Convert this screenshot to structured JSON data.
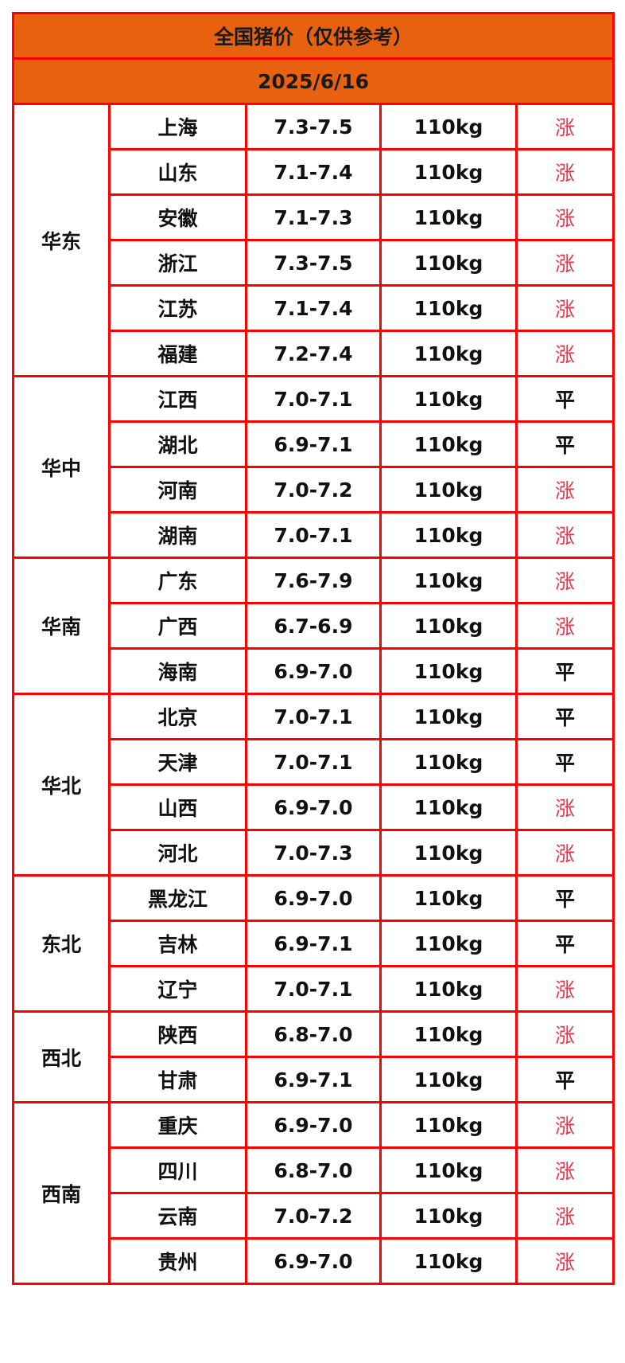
{
  "title": "全国猪价（仅供参考）",
  "date": "2025/6/16",
  "colors": {
    "header_bg": "#e8610f",
    "border": "#ff0000",
    "up": "#f03048",
    "flat": "#111111"
  },
  "regions": [
    {
      "name": "华东",
      "rows": [
        {
          "province": "上海",
          "price": "7.3-7.5",
          "weight": "110kg",
          "trend": "涨"
        },
        {
          "province": "山东",
          "price": "7.1-7.4",
          "weight": "110kg",
          "trend": "涨"
        },
        {
          "province": "安徽",
          "price": "7.1-7.3",
          "weight": "110kg",
          "trend": "涨"
        },
        {
          "province": "浙江",
          "price": "7.3-7.5",
          "weight": "110kg",
          "trend": "涨"
        },
        {
          "province": "江苏",
          "price": "7.1-7.4",
          "weight": "110kg",
          "trend": "涨"
        },
        {
          "province": "福建",
          "price": "7.2-7.4",
          "weight": "110kg",
          "trend": "涨"
        }
      ]
    },
    {
      "name": "华中",
      "rows": [
        {
          "province": "江西",
          "price": "7.0-7.1",
          "weight": "110kg",
          "trend": "平"
        },
        {
          "province": "湖北",
          "price": "6.9-7.1",
          "weight": "110kg",
          "trend": "平"
        },
        {
          "province": "河南",
          "price": "7.0-7.2",
          "weight": "110kg",
          "trend": "涨"
        },
        {
          "province": "湖南",
          "price": "7.0-7.1",
          "weight": "110kg",
          "trend": "涨"
        }
      ]
    },
    {
      "name": "华南",
      "rows": [
        {
          "province": "广东",
          "price": "7.6-7.9",
          "weight": "110kg",
          "trend": "涨"
        },
        {
          "province": "广西",
          "price": "6.7-6.9",
          "weight": "110kg",
          "trend": "涨"
        },
        {
          "province": "海南",
          "price": "6.9-7.0",
          "weight": "110kg",
          "trend": "平"
        }
      ]
    },
    {
      "name": "华北",
      "rows": [
        {
          "province": "北京",
          "price": "7.0-7.1",
          "weight": "110kg",
          "trend": "平"
        },
        {
          "province": "天津",
          "price": "7.0-7.1",
          "weight": "110kg",
          "trend": "平"
        },
        {
          "province": "山西",
          "price": "6.9-7.0",
          "weight": "110kg",
          "trend": "涨"
        },
        {
          "province": "河北",
          "price": "7.0-7.3",
          "weight": "110kg",
          "trend": "涨"
        }
      ]
    },
    {
      "name": "东北",
      "rows": [
        {
          "province": "黑龙江",
          "price": "6.9-7.0",
          "weight": "110kg",
          "trend": "平"
        },
        {
          "province": "吉林",
          "price": "6.9-7.1",
          "weight": "110kg",
          "trend": "平"
        },
        {
          "province": "辽宁",
          "price": "7.0-7.1",
          "weight": "110kg",
          "trend": "涨"
        }
      ]
    },
    {
      "name": "西北",
      "rows": [
        {
          "province": "陕西",
          "price": "6.8-7.0",
          "weight": "110kg",
          "trend": "涨"
        },
        {
          "province": "甘肃",
          "price": "6.9-7.1",
          "weight": "110kg",
          "trend": "平"
        }
      ]
    },
    {
      "name": "西南",
      "rows": [
        {
          "province": "重庆",
          "price": "6.9-7.0",
          "weight": "110kg",
          "trend": "涨"
        },
        {
          "province": "四川",
          "price": "6.8-7.0",
          "weight": "110kg",
          "trend": "涨"
        },
        {
          "province": "云南",
          "price": "7.0-7.2",
          "weight": "110kg",
          "trend": "涨"
        },
        {
          "province": "贵州",
          "price": "6.9-7.0",
          "weight": "110kg",
          "trend": "涨"
        }
      ]
    }
  ]
}
